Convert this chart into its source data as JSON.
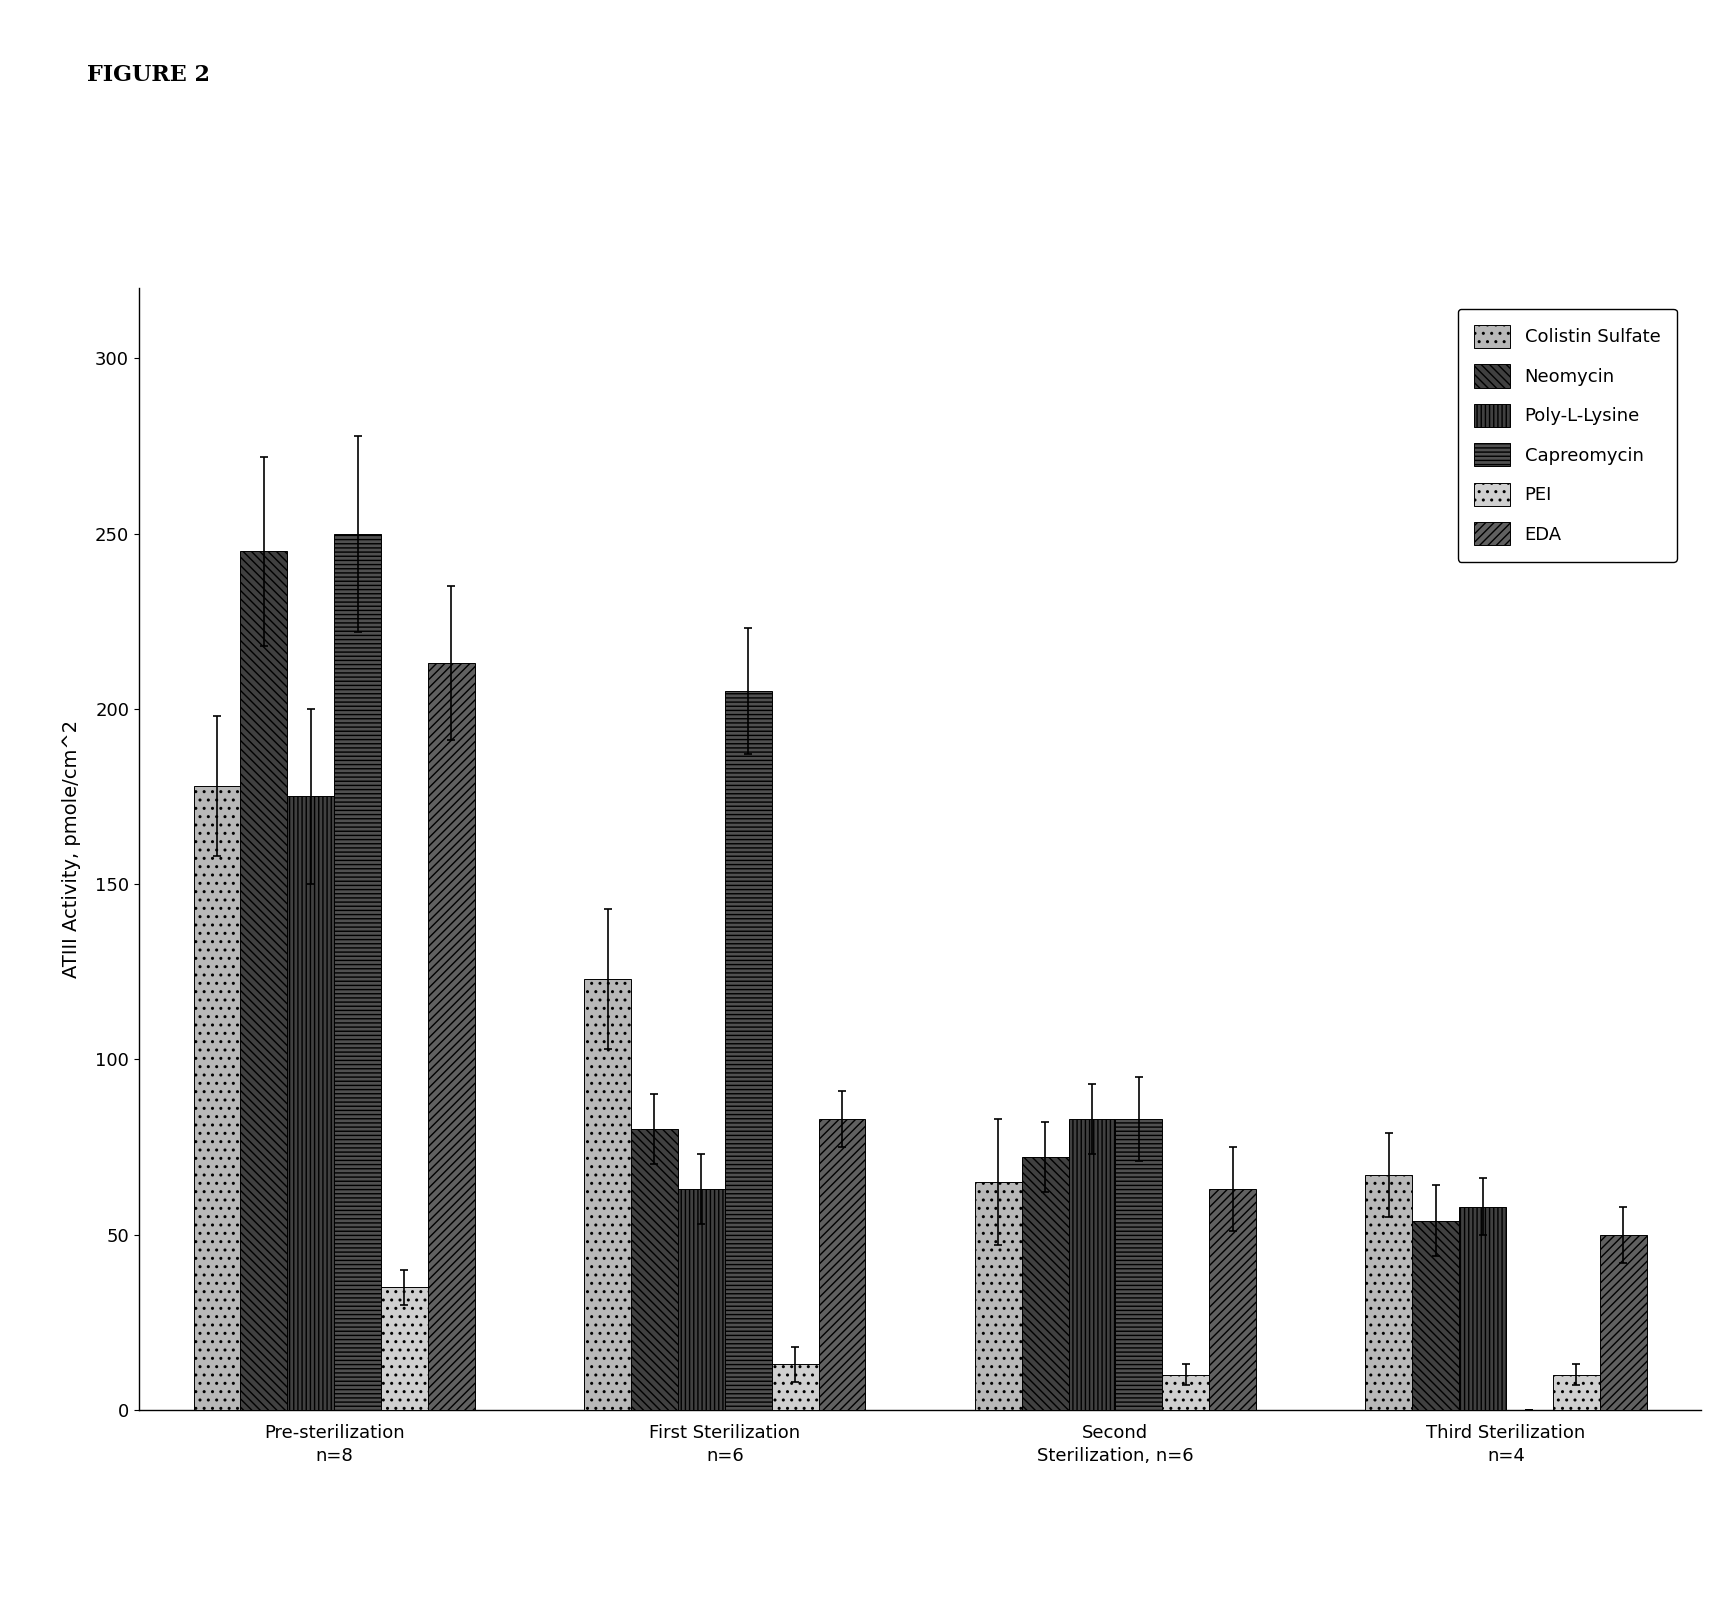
{
  "figure_title": "FIGURE 2",
  "ylabel": "ATIII Activity, pmole/cm^2",
  "ylim": [
    0,
    320
  ],
  "yticks": [
    0,
    50,
    100,
    150,
    200,
    250,
    300
  ],
  "groups": [
    "Pre-sterilization\nn=8",
    "First Sterilization\nn=6",
    "Second\nSterilization, n=6",
    "Third Sterilization\nn=4"
  ],
  "series_labels": [
    "Colistin Sulfate",
    "Neomycin",
    "Poly-L-Lysine",
    "Capreomycin",
    "PEI",
    "EDA"
  ],
  "values": [
    [
      178,
      245,
      175,
      250,
      35,
      213
    ],
    [
      123,
      80,
      63,
      205,
      13,
      83
    ],
    [
      65,
      72,
      83,
      83,
      10,
      63
    ],
    [
      67,
      54,
      58,
      0,
      10,
      50
    ]
  ],
  "errors": [
    [
      20,
      27,
      25,
      28,
      5,
      22
    ],
    [
      20,
      10,
      10,
      18,
      5,
      8
    ],
    [
      18,
      10,
      10,
      12,
      3,
      12
    ],
    [
      12,
      10,
      8,
      0,
      3,
      8
    ]
  ],
  "background_color": "#ffffff",
  "bar_width": 0.12,
  "figsize": [
    17.36,
    16.02
  ],
  "dpi": 100
}
